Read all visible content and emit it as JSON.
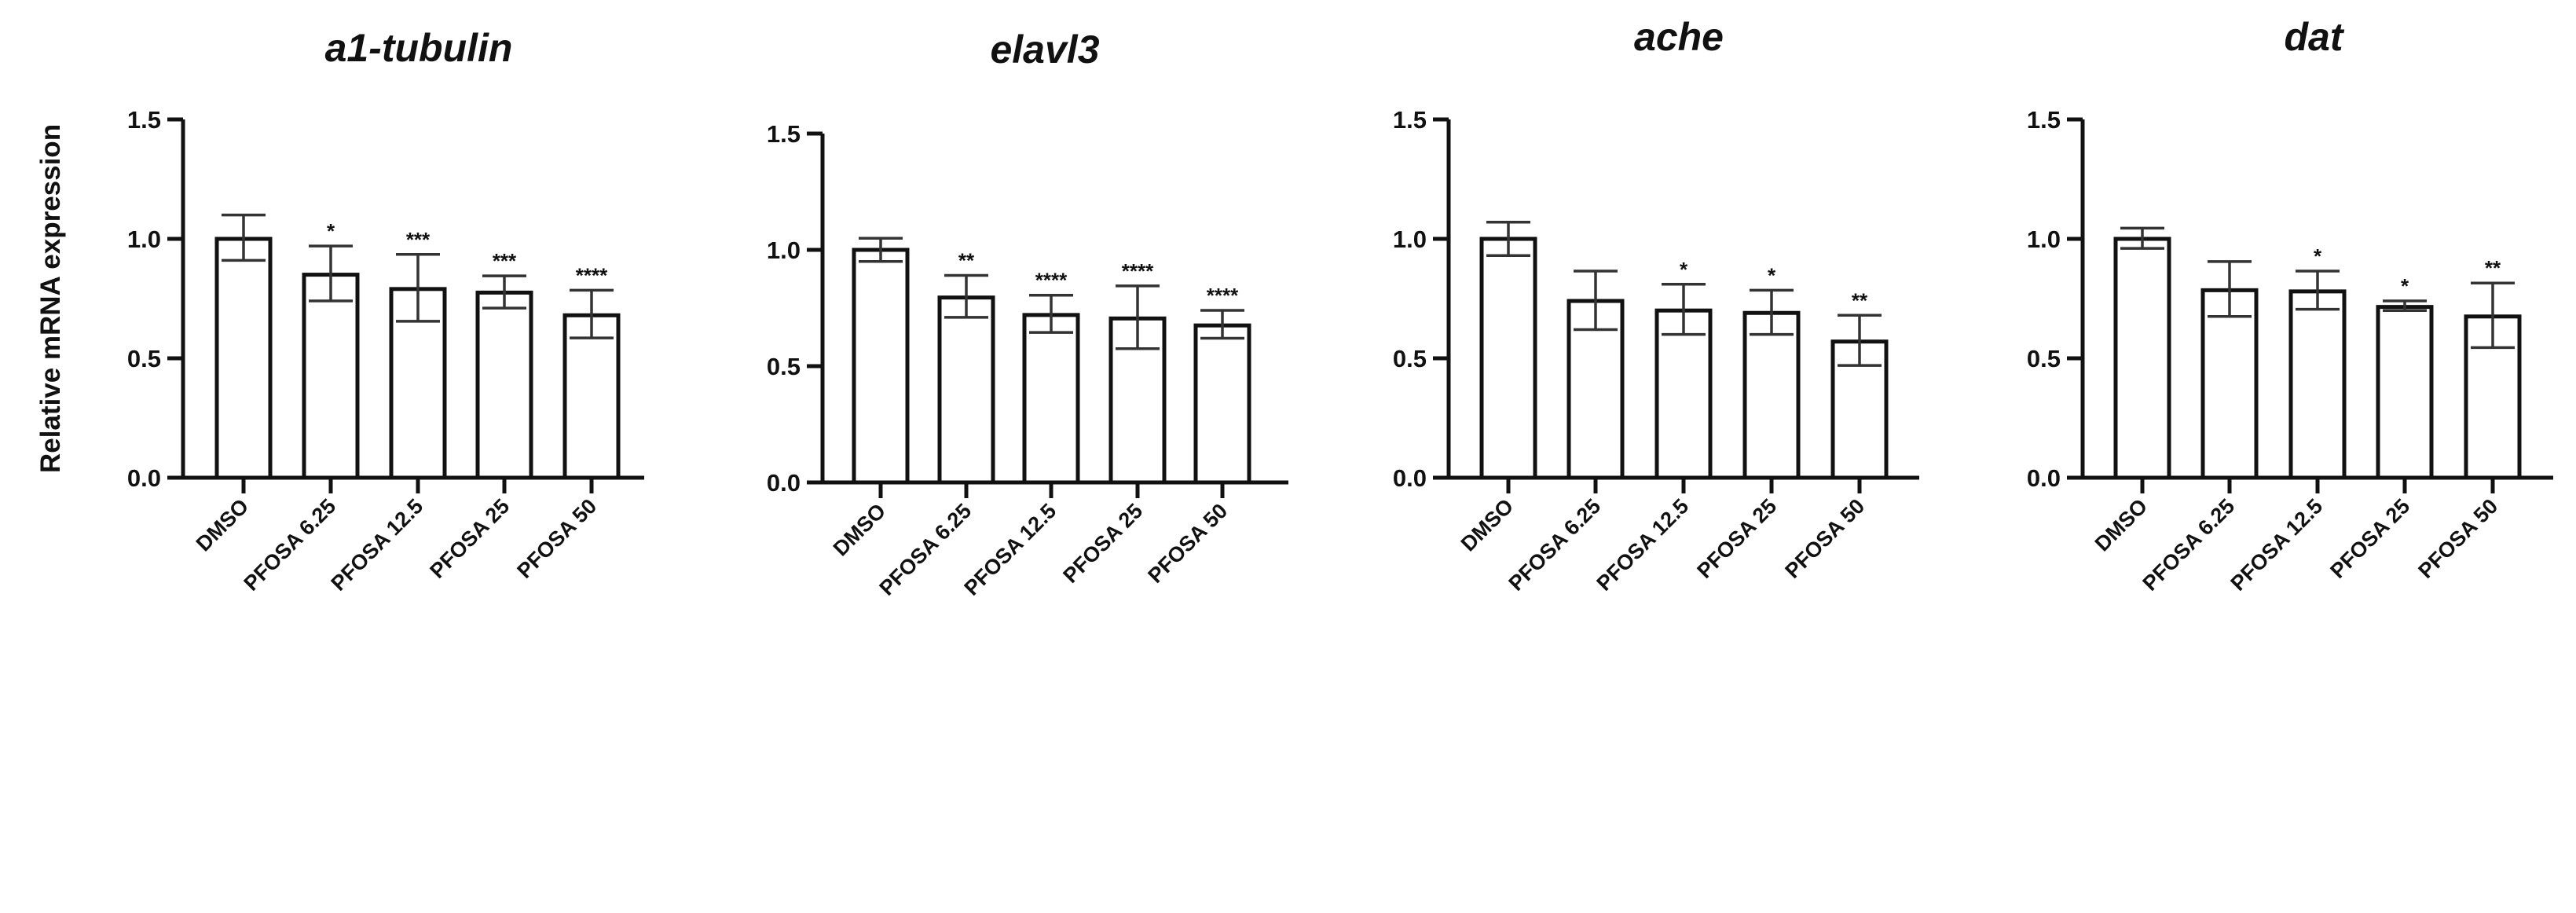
{
  "chart_data": [
    {
      "type": "bar",
      "title": "a1-tubulin",
      "ylabel": "Relative mRNA expression",
      "categories": [
        "DMSO",
        "PFOSA 6.25",
        "PFOSA 12.5",
        "PFOSA 25",
        "PFOSA 50"
      ],
      "values": [
        1.0,
        0.85,
        0.79,
        0.775,
        0.68
      ],
      "error_low": [
        0.91,
        0.74,
        0.655,
        0.71,
        0.585
      ],
      "error_high": [
        1.1,
        0.97,
        0.935,
        0.845,
        0.785
      ],
      "significance": [
        "",
        "*",
        "***",
        "***",
        "****"
      ],
      "ylim": [
        0,
        1.5
      ],
      "yticks": [
        "0.0",
        "0.5",
        "1.0",
        "1.5"
      ],
      "grid": false
    },
    {
      "type": "bar",
      "title": "elavl3",
      "ylabel": "",
      "categories": [
        "DMSO",
        "PFOSA 6.25",
        "PFOSA 12.5",
        "PFOSA 25",
        "PFOSA 50"
      ],
      "values": [
        1.0,
        0.795,
        0.72,
        0.705,
        0.675
      ],
      "error_low": [
        0.95,
        0.71,
        0.645,
        0.575,
        0.62
      ],
      "error_high": [
        1.05,
        0.89,
        0.805,
        0.845,
        0.74
      ],
      "significance": [
        "",
        "**",
        "****",
        "****",
        "****"
      ],
      "ylim": [
        0,
        1.5
      ],
      "yticks": [
        "0.0",
        "0.5",
        "1.0",
        "1.5"
      ],
      "grid": false
    },
    {
      "type": "bar",
      "title": "ache",
      "ylabel": "",
      "categories": [
        "DMSO",
        "PFOSA 6.25",
        "PFOSA 12.5",
        "PFOSA 25",
        "PFOSA 50"
      ],
      "values": [
        1.0,
        0.74,
        0.7,
        0.69,
        0.57
      ],
      "error_low": [
        0.93,
        0.62,
        0.6,
        0.6,
        0.47
      ],
      "error_high": [
        1.07,
        0.865,
        0.81,
        0.785,
        0.68
      ],
      "significance": [
        "",
        "",
        "*",
        "*",
        "**"
      ],
      "ylim": [
        0,
        1.5
      ],
      "yticks": [
        "0.0",
        "0.5",
        "1.0",
        "1.5"
      ],
      "grid": false
    },
    {
      "type": "bar",
      "title": "dat",
      "ylabel": "",
      "categories": [
        "DMSO",
        "PFOSA 6.25",
        "PFOSA 12.5",
        "PFOSA 25",
        "PFOSA 50"
      ],
      "values": [
        1.0,
        0.785,
        0.78,
        0.715,
        0.675
      ],
      "error_low": [
        0.96,
        0.675,
        0.705,
        0.7,
        0.545
      ],
      "error_high": [
        1.045,
        0.905,
        0.865,
        0.74,
        0.815
      ],
      "significance": [
        "",
        "",
        "*",
        "*",
        "**"
      ],
      "ylim": [
        0,
        1.5
      ],
      "yticks": [
        "0.0",
        "0.5",
        "1.0",
        "1.5"
      ],
      "grid": false
    }
  ],
  "colors": {
    "bar_fill": "#ffffff",
    "bar_stroke": "#111111",
    "error_bar": "#333333"
  }
}
